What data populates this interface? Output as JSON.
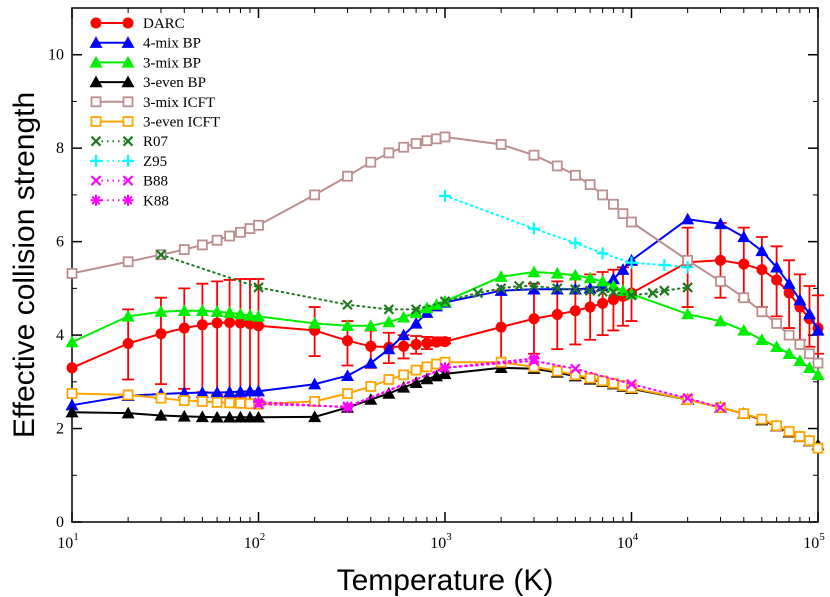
{
  "chart_data": {
    "type": "line",
    "xscale": "log",
    "xlim": [
      10,
      100000
    ],
    "ylim": [
      0,
      11
    ],
    "xlabel": "Temperature (K)",
    "ylabel": "Effective collision strength",
    "x_ticks": [
      {
        "base": "10",
        "exp": "1"
      },
      {
        "base": "10",
        "exp": "2"
      },
      {
        "base": "10",
        "exp": "3"
      },
      {
        "base": "10",
        "exp": "4"
      },
      {
        "base": "10",
        "exp": "5"
      }
    ],
    "y_ticks": [
      "0",
      "2",
      "4",
      "6",
      "8",
      "10"
    ],
    "legend_position": "top-left",
    "series": [
      {
        "name": "DARC",
        "color": "#ff0000",
        "marker": "circle",
        "line": "solid",
        "x": [
          10,
          20,
          30,
          40,
          50,
          60,
          70,
          80,
          90,
          100,
          200,
          300,
          400,
          500,
          600,
          700,
          800,
          900,
          1000,
          2000,
          3000,
          4000,
          5000,
          6000,
          7000,
          8000,
          9000,
          10000,
          20000,
          30000,
          40000,
          50000,
          60000,
          70000,
          80000,
          90000,
          100000
        ],
        "y": [
          3.3,
          3.82,
          4.03,
          4.15,
          4.22,
          4.26,
          4.27,
          4.26,
          4.24,
          4.2,
          4.1,
          3.88,
          3.76,
          3.74,
          3.76,
          3.8,
          3.83,
          3.85,
          3.86,
          4.17,
          4.35,
          4.44,
          4.52,
          4.6,
          4.68,
          4.76,
          4.83,
          4.9,
          5.56,
          5.6,
          5.52,
          5.4,
          5.18,
          4.9,
          4.6,
          4.35,
          4.15
        ],
        "err_x": [
          20,
          30,
          40,
          50,
          60,
          70,
          80,
          90,
          100,
          200,
          300,
          400,
          500,
          600,
          700,
          800,
          900,
          1000,
          2000,
          3000,
          4000,
          5000,
          6000,
          7000,
          8000,
          9000,
          10000,
          20000,
          30000,
          40000,
          50000,
          60000,
          70000,
          80000,
          90000,
          100000
        ],
        "err_lo": [
          3.05,
          2.95,
          2.85,
          2.78,
          2.72,
          2.68,
          2.65,
          2.62,
          2.6,
          3.55,
          3.35,
          3.3,
          3.4,
          3.5,
          3.6,
          3.7,
          3.78,
          3.82,
          3.4,
          3.6,
          3.7,
          3.8,
          3.9,
          4.0,
          4.1,
          4.2,
          4.3,
          4.6,
          4.8,
          4.75,
          4.6,
          4.4,
          4.15,
          3.9,
          3.75,
          3.6
        ],
        "err_hi": [
          4.55,
          4.8,
          5.0,
          5.1,
          5.15,
          5.18,
          5.2,
          5.2,
          5.2,
          4.6,
          4.3,
          4.1,
          4.05,
          4.0,
          3.98,
          3.96,
          3.95,
          3.94,
          4.95,
          5.1,
          5.15,
          5.2,
          5.3,
          5.35,
          5.4,
          5.45,
          5.5,
          6.3,
          6.4,
          6.3,
          6.1,
          5.9,
          5.6,
          5.3,
          5.05,
          4.85
        ]
      },
      {
        "name": "4-mix BP",
        "color": "#0000ff",
        "marker": "triangle",
        "line": "solid",
        "x": [
          10,
          20,
          30,
          40,
          50,
          60,
          70,
          80,
          90,
          100,
          200,
          300,
          400,
          500,
          600,
          700,
          800,
          900,
          1000,
          2000,
          3000,
          4000,
          5000,
          6000,
          7000,
          8000,
          9000,
          10000,
          20000,
          30000,
          40000,
          50000,
          60000,
          70000,
          80000,
          90000,
          100000
        ],
        "y": [
          2.5,
          2.7,
          2.74,
          2.76,
          2.77,
          2.77,
          2.78,
          2.79,
          2.8,
          2.8,
          2.95,
          3.13,
          3.4,
          3.7,
          4.0,
          4.25,
          4.48,
          4.62,
          4.7,
          4.95,
          4.98,
          4.98,
          4.98,
          5.0,
          5.05,
          5.2,
          5.4,
          5.6,
          6.48,
          6.38,
          6.1,
          5.8,
          5.45,
          5.1,
          4.75,
          4.45,
          4.1
        ]
      },
      {
        "name": "3-mix BP",
        "color": "#00ee00",
        "marker": "triangle",
        "line": "solid",
        "x": [
          10,
          20,
          30,
          40,
          50,
          60,
          70,
          80,
          90,
          100,
          200,
          300,
          400,
          500,
          600,
          700,
          800,
          900,
          1000,
          2000,
          3000,
          4000,
          5000,
          6000,
          7000,
          8000,
          9000,
          10000,
          20000,
          30000,
          40000,
          50000,
          60000,
          70000,
          80000,
          90000,
          100000
        ],
        "y": [
          3.85,
          4.4,
          4.5,
          4.52,
          4.52,
          4.5,
          4.48,
          4.45,
          4.42,
          4.4,
          4.25,
          4.2,
          4.2,
          4.28,
          4.38,
          4.48,
          4.58,
          4.65,
          4.72,
          5.25,
          5.35,
          5.32,
          5.28,
          5.22,
          5.15,
          5.05,
          4.95,
          4.88,
          4.45,
          4.3,
          4.1,
          3.9,
          3.75,
          3.6,
          3.45,
          3.3,
          3.15
        ]
      },
      {
        "name": "3-even BP",
        "color": "#000000",
        "marker": "triangle",
        "line": "solid",
        "x": [
          10,
          20,
          30,
          40,
          50,
          60,
          70,
          80,
          90,
          100,
          200,
          300,
          400,
          500,
          600,
          700,
          800,
          900,
          1000,
          2000,
          3000,
          4000,
          5000,
          6000,
          7000,
          8000,
          9000,
          10000,
          20000,
          30000,
          40000,
          50000,
          60000,
          70000,
          80000,
          90000,
          100000
        ],
        "y": [
          2.35,
          2.33,
          2.28,
          2.26,
          2.25,
          2.24,
          2.24,
          2.24,
          2.24,
          2.24,
          2.25,
          2.45,
          2.62,
          2.75,
          2.88,
          2.98,
          3.06,
          3.12,
          3.17,
          3.3,
          3.28,
          3.2,
          3.12,
          3.05,
          3.0,
          2.95,
          2.9,
          2.85,
          2.62,
          2.45,
          2.32,
          2.18,
          2.05,
          1.92,
          1.82,
          1.73,
          1.65
        ]
      },
      {
        "name": "3-mix ICFT",
        "color": "#bc8f8f",
        "marker": "square",
        "line": "solid",
        "x": [
          10,
          20,
          30,
          40,
          50,
          60,
          70,
          80,
          90,
          100,
          200,
          300,
          400,
          500,
          600,
          700,
          800,
          900,
          1000,
          2000,
          3000,
          4000,
          5000,
          6000,
          7000,
          8000,
          9000,
          10000,
          20000,
          30000,
          40000,
          50000,
          60000,
          70000,
          80000,
          90000,
          100000
        ],
        "y": [
          5.32,
          5.57,
          5.72,
          5.83,
          5.93,
          6.03,
          6.12,
          6.2,
          6.28,
          6.35,
          7.0,
          7.4,
          7.7,
          7.9,
          8.02,
          8.1,
          8.16,
          8.2,
          8.24,
          8.08,
          7.85,
          7.62,
          7.42,
          7.22,
          7.0,
          6.8,
          6.6,
          6.42,
          5.6,
          5.15,
          4.8,
          4.5,
          4.25,
          4.0,
          3.8,
          3.6,
          3.4
        ]
      },
      {
        "name": "3-even ICFT",
        "color": "#ffa500",
        "marker": "square",
        "line": "solid",
        "x": [
          10,
          20,
          30,
          40,
          50,
          60,
          70,
          80,
          90,
          100,
          200,
          300,
          400,
          500,
          600,
          700,
          800,
          900,
          1000,
          2000,
          3000,
          4000,
          5000,
          6000,
          7000,
          8000,
          9000,
          10000,
          20000,
          30000,
          40000,
          50000,
          60000,
          70000,
          80000,
          90000,
          100000
        ],
        "y": [
          2.75,
          2.72,
          2.65,
          2.6,
          2.58,
          2.56,
          2.55,
          2.54,
          2.53,
          2.52,
          2.58,
          2.75,
          2.9,
          3.05,
          3.15,
          3.25,
          3.32,
          3.38,
          3.42,
          3.42,
          3.32,
          3.23,
          3.15,
          3.08,
          3.02,
          2.97,
          2.92,
          2.87,
          2.62,
          2.45,
          2.32,
          2.2,
          2.06,
          1.94,
          1.83,
          1.74,
          1.58
        ]
      },
      {
        "name": "R07",
        "color": "#1f7a1f",
        "marker": "x",
        "line": "dotted",
        "x": [
          30,
          100,
          300,
          500,
          700,
          1000,
          1500,
          2000,
          2500,
          3000,
          4000,
          5000,
          6000,
          7000,
          8000,
          10000,
          13000,
          15000,
          20000
        ],
        "y": [
          5.72,
          5.02,
          4.65,
          4.55,
          4.55,
          4.72,
          4.9,
          5.0,
          5.05,
          5.05,
          5.0,
          4.98,
          4.95,
          4.93,
          4.92,
          4.85,
          4.9,
          4.95,
          5.02
        ]
      },
      {
        "name": "Z95",
        "color": "#00ffff",
        "marker": "plus",
        "line": "dotted",
        "x": [
          1000,
          3000,
          5000,
          7000,
          10000,
          15000,
          20000
        ],
        "y": [
          6.98,
          6.28,
          5.97,
          5.75,
          5.55,
          5.5,
          5.45
        ]
      },
      {
        "name": "B88",
        "color": "#ff00ff",
        "marker": "x",
        "line": "dotted",
        "x": [
          100,
          300,
          1000,
          3000,
          5000,
          10000,
          20000,
          30000
        ],
        "y": [
          2.52,
          2.47,
          3.3,
          3.45,
          3.28,
          2.95,
          2.65,
          2.45
        ]
      },
      {
        "name": "K88",
        "color": "#ff00ff",
        "marker": "asterisk",
        "line": "dotted",
        "x": [
          100,
          300,
          1000,
          3000
        ],
        "y": [
          2.57,
          2.45,
          3.3,
          3.5
        ]
      }
    ]
  }
}
